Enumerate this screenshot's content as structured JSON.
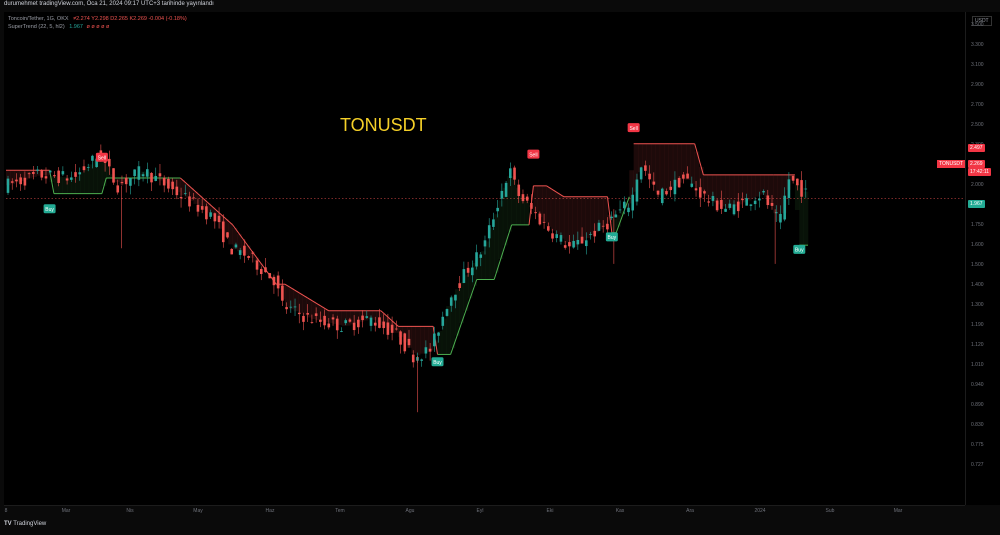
{
  "header": {
    "text": "durumehmet tradingView.com, Oca 21, 2024 09:17 UTC+3 tarihinde yayınlandı"
  },
  "legend": {
    "line1_label": "Toncoin/Tether, 1G, OKX",
    "line1_values": "≠2.274 Y2.298 D2.265 K2.269 -0.004 (-0.18%)",
    "line2_label": "SuperTrend (22, 5, hl2)",
    "line2_value_green": "1.967",
    "line2_value_rest": "ø ø ø ø ø"
  },
  "title": "TONUSDT",
  "currency": "USDT",
  "footer": {
    "brand": "TradingView"
  },
  "colors": {
    "bull": "#26a69a",
    "bear": "#ef5350",
    "st_up": "#4caf50",
    "st_down": "#ef5350",
    "title": "#f5d028"
  },
  "y_axis": {
    "ticks": [
      "3.500",
      "3.300",
      "3.100",
      "2.900",
      "2.700",
      "2.500",
      "2.300",
      "2.150",
      "2.000",
      "1.900",
      "1.750",
      "1.600",
      "1.500",
      "1.400",
      "1.300",
      "1.190",
      "1.120",
      "1.010",
      "0.940",
      "0.890",
      "0.830",
      "0.775",
      "0.727"
    ],
    "labels": {
      "last": "2.269",
      "last_time": "17:42:11",
      "red": "2.497",
      "green": "1.967",
      "symbol": "TONUSDT"
    }
  },
  "x_axis": {
    "ticks": [
      "8",
      "Mar",
      "Nis",
      "May",
      "Haz",
      "Tem",
      "Agu",
      "Eyl",
      "Eki",
      "Kas",
      "Ara",
      "2024",
      "Sub",
      "Mar"
    ]
  },
  "chart_data": {
    "type": "line",
    "title": "TONUSDT",
    "indicator": "SuperTrend (22, 5, hl2)",
    "price_path": [
      [
        0,
        2.35
      ],
      [
        8,
        2.42
      ],
      [
        16,
        2.4
      ],
      [
        22,
        2.55
      ],
      [
        26,
        2.35
      ],
      [
        32,
        2.45
      ],
      [
        40,
        2.3
      ],
      [
        48,
        2.15
      ],
      [
        52,
        1.95
      ],
      [
        56,
        1.9
      ],
      [
        62,
        1.75
      ],
      [
        64,
        1.58
      ],
      [
        70,
        1.5
      ],
      [
        78,
        1.45
      ],
      [
        84,
        1.5
      ],
      [
        90,
        1.4
      ],
      [
        94,
        1.26
      ],
      [
        98,
        1.3
      ],
      [
        102,
        1.62
      ],
      [
        106,
        1.8
      ],
      [
        110,
        1.95
      ],
      [
        114,
        2.3
      ],
      [
        116,
        2.45
      ],
      [
        118,
        2.3
      ],
      [
        124,
        2.1
      ],
      [
        130,
        1.95
      ],
      [
        138,
        2.1
      ],
      [
        144,
        2.25
      ],
      [
        146,
        2.5
      ],
      [
        150,
        2.28
      ],
      [
        156,
        2.4
      ],
      [
        162,
        2.25
      ],
      [
        166,
        2.2
      ],
      [
        170,
        2.25
      ],
      [
        174,
        2.3
      ],
      [
        178,
        2.1
      ],
      [
        180,
        2.4
      ],
      [
        184,
        2.3
      ]
    ],
    "supertrend_path": [
      [
        0,
        2.45
      ],
      [
        10,
        2.45
      ],
      [
        11,
        2.3
      ],
      [
        22,
        2.3
      ],
      [
        23,
        2.4
      ],
      [
        40,
        2.4
      ],
      [
        44,
        2.3
      ],
      [
        52,
        2.1
      ],
      [
        62,
        1.72
      ],
      [
        64,
        1.72
      ],
      [
        74,
        1.55
      ],
      [
        86,
        1.55
      ],
      [
        90,
        1.45
      ],
      [
        98,
        1.45
      ],
      [
        99,
        1.27
      ],
      [
        102,
        1.27
      ],
      [
        108,
        1.75
      ],
      [
        112,
        1.75
      ],
      [
        116,
        2.1
      ],
      [
        120,
        2.1
      ],
      [
        121,
        2.35
      ],
      [
        124,
        2.35
      ],
      [
        128,
        2.28
      ],
      [
        138,
        2.28
      ],
      [
        139,
        2.05
      ],
      [
        140,
        2.05
      ],
      [
        143,
        2.28
      ],
      [
        144,
        2.62
      ],
      [
        158,
        2.62
      ],
      [
        160,
        2.42
      ],
      [
        176,
        2.42
      ],
      [
        181,
        2.42
      ],
      [
        182,
        1.97
      ],
      [
        184,
        1.97
      ]
    ],
    "signals": [
      {
        "label": "Buy",
        "t": 10,
        "price": 2.2
      },
      {
        "label": "Sell",
        "t": 22,
        "price": 2.53
      },
      {
        "label": "Buy",
        "t": 99,
        "price": 1.22
      },
      {
        "label": "Sell",
        "t": 121,
        "price": 2.55
      },
      {
        "label": "Buy",
        "t": 139,
        "price": 2.02
      },
      {
        "label": "Sell",
        "t": 144,
        "price": 2.72
      },
      {
        "label": "Buy",
        "t": 182,
        "price": 1.94
      }
    ],
    "last_price": 2.269
  }
}
